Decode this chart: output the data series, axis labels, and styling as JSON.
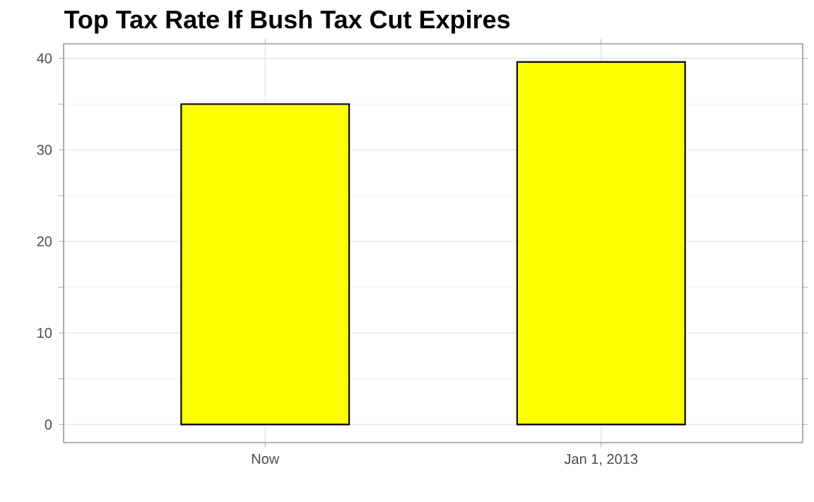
{
  "chart_data": {
    "type": "bar",
    "title": "Top Tax Rate If Bush Tax Cut Expires",
    "categories": [
      "Now",
      "Jan 1, 2013"
    ],
    "values": [
      35,
      39.6
    ],
    "color": "#ffff00",
    "ylim": [
      -1.98,
      41.58
    ],
    "yticks": [
      0,
      10,
      20,
      30,
      40
    ],
    "grid": true
  }
}
